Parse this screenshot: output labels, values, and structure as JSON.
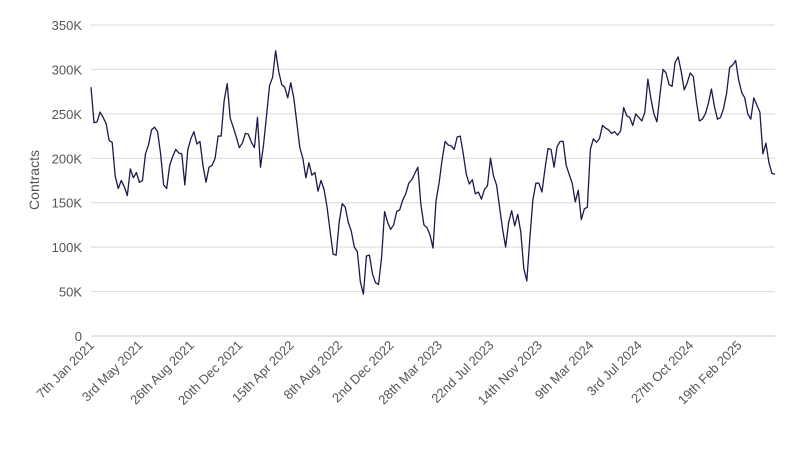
{
  "chart_data": {
    "type": "line",
    "title": "",
    "xlabel": "",
    "ylabel": "Contracts",
    "ylim": [
      0,
      350000
    ],
    "grid": true,
    "legend": "none",
    "line_color": "#1b1a4a",
    "y_ticks": [
      {
        "value": 0,
        "label": "0"
      },
      {
        "value": 50000,
        "label": "50K"
      },
      {
        "value": 100000,
        "label": "100K"
      },
      {
        "value": 150000,
        "label": "150K"
      },
      {
        "value": 200000,
        "label": "200K"
      },
      {
        "value": 250000,
        "label": "250K"
      },
      {
        "value": 300000,
        "label": "300K"
      },
      {
        "value": 350000,
        "label": "350K"
      }
    ],
    "x_ticks": [
      {
        "index": 0,
        "label": "7th Jan 2021"
      },
      {
        "index": 16,
        "label": "3rd May 2021"
      },
      {
        "index": 33,
        "label": "26th Aug 2021"
      },
      {
        "index": 49,
        "label": "20th Dec 2021"
      },
      {
        "index": 66,
        "label": "15th Apr 2022"
      },
      {
        "index": 82,
        "label": "8th Aug 2022"
      },
      {
        "index": 99,
        "label": "2nd Dec 2022"
      },
      {
        "index": 115,
        "label": "28th Mar 2023"
      },
      {
        "index": 132,
        "label": "22nd Jul 2023"
      },
      {
        "index": 148,
        "label": "14th Nov 2023"
      },
      {
        "index": 165,
        "label": "9th Mar 2024"
      },
      {
        "index": 181,
        "label": "3rd Jul 2024"
      },
      {
        "index": 198,
        "label": "27th Oct 2024"
      },
      {
        "index": 214,
        "label": "19th Feb 2025"
      }
    ],
    "series": [
      {
        "values": [
          280000,
          240000,
          241000,
          252000,
          246000,
          239000,
          220000,
          218000,
          180000,
          166000,
          175000,
          168000,
          158000,
          188000,
          178000,
          184000,
          173000,
          175000,
          205000,
          215000,
          232000,
          235000,
          230000,
          205000,
          170000,
          166000,
          192000,
          202000,
          210000,
          206000,
          205000,
          170000,
          210000,
          222000,
          230000,
          216000,
          219000,
          192000,
          173000,
          190000,
          192000,
          200000,
          225000,
          225000,
          265000,
          284000,
          245000,
          235000,
          224000,
          212000,
          217000,
          228000,
          227000,
          218000,
          212000,
          246000,
          190000,
          215000,
          248000,
          282000,
          291000,
          321000,
          298000,
          283000,
          280000,
          268000,
          285000,
          268000,
          240000,
          212000,
          200000,
          178000,
          195000,
          181000,
          184000,
          163000,
          175000,
          165000,
          145000,
          118000,
          92000,
          91000,
          128000,
          149000,
          145000,
          128000,
          118000,
          100000,
          95000,
          61000,
          47000,
          90000,
          91000,
          70000,
          60000,
          58000,
          88000,
          140000,
          128000,
          120000,
          125000,
          140000,
          142000,
          153000,
          160000,
          172000,
          176000,
          183000,
          190000,
          148000,
          125000,
          122000,
          114000,
          99000,
          152000,
          172000,
          198000,
          219000,
          215000,
          214000,
          210000,
          224000,
          225000,
          205000,
          182000,
          171000,
          176000,
          160000,
          162000,
          154000,
          165000,
          169000,
          200000,
          180000,
          170000,
          145000,
          120000,
          100000,
          128000,
          141000,
          124000,
          137000,
          117000,
          76000,
          62000,
          110000,
          153000,
          172000,
          172000,
          162000,
          188000,
          211000,
          210000,
          190000,
          213000,
          219000,
          219000,
          192000,
          182000,
          172000,
          151000,
          164000,
          131000,
          143000,
          145000,
          210000,
          222000,
          218000,
          222000,
          237000,
          234000,
          232000,
          228000,
          230000,
          226000,
          231000,
          257000,
          248000,
          246000,
          237000,
          250000,
          246000,
          242000,
          252000,
          289000,
          267000,
          250000,
          241000,
          272000,
          300000,
          296000,
          283000,
          281000,
          308000,
          314000,
          298000,
          277000,
          285000,
          296000,
          292000,
          265000,
          242000,
          244000,
          250000,
          262000,
          278000,
          258000,
          244000,
          246000,
          256000,
          273000,
          302000,
          305000,
          310000,
          288000,
          274000,
          268000,
          250000,
          244000,
          268000,
          260000,
          252000,
          205000,
          217000,
          195000,
          183000,
          182000
        ]
      }
    ]
  }
}
